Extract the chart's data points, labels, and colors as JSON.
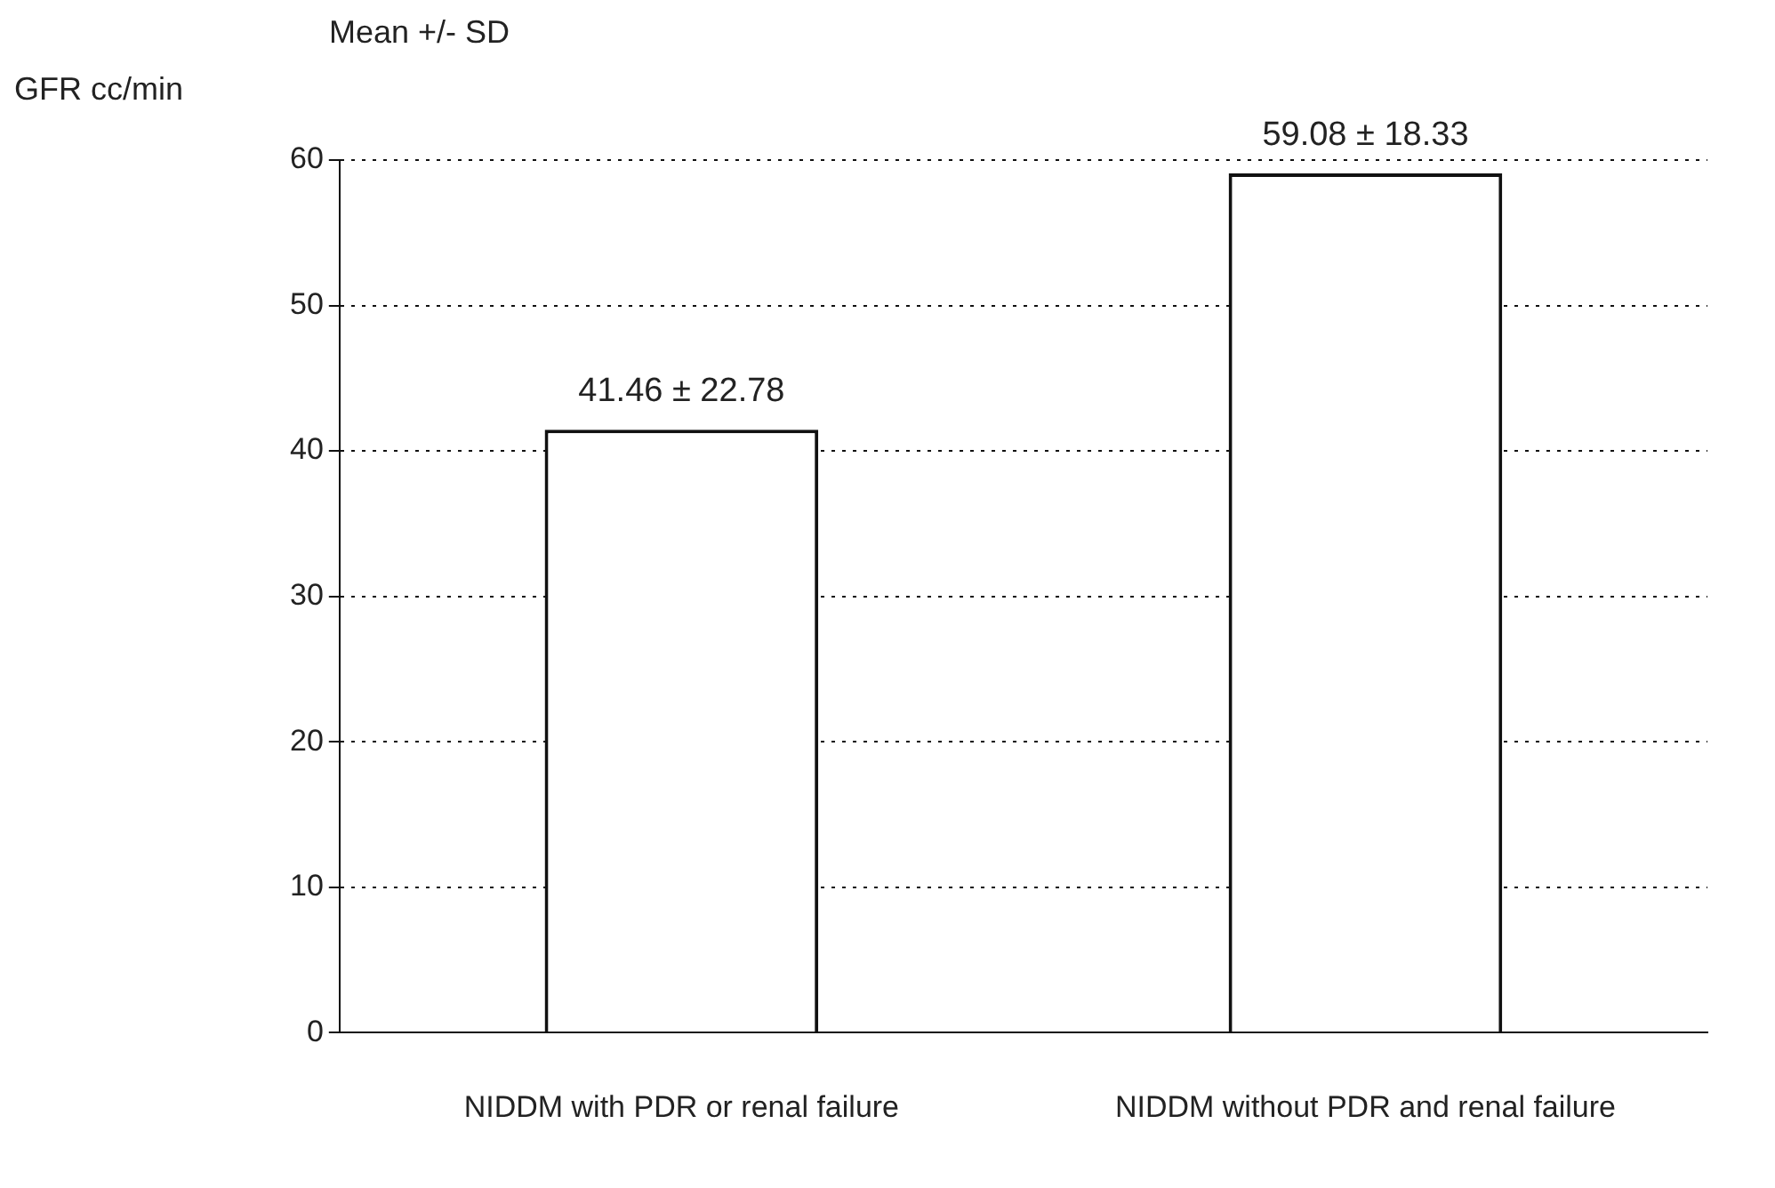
{
  "chart_data": {
    "type": "bar",
    "title": "Mean +/- SD",
    "ylabel": "GFR cc/min",
    "categories": [
      "NIDDM with PDR or renal failure",
      "NIDDM without PDR and renal failure"
    ],
    "values": [
      41.46,
      59.08
    ],
    "color": "#ffffff",
    "value_labels": [
      "41.46 ± 22.78",
      "59.08 ± 18.33"
    ],
    "ylim": [
      0,
      60
    ],
    "yticks": [
      0,
      10,
      20,
      30,
      40,
      50,
      60
    ],
    "grid": "y",
    "line_style": "dotted"
  }
}
